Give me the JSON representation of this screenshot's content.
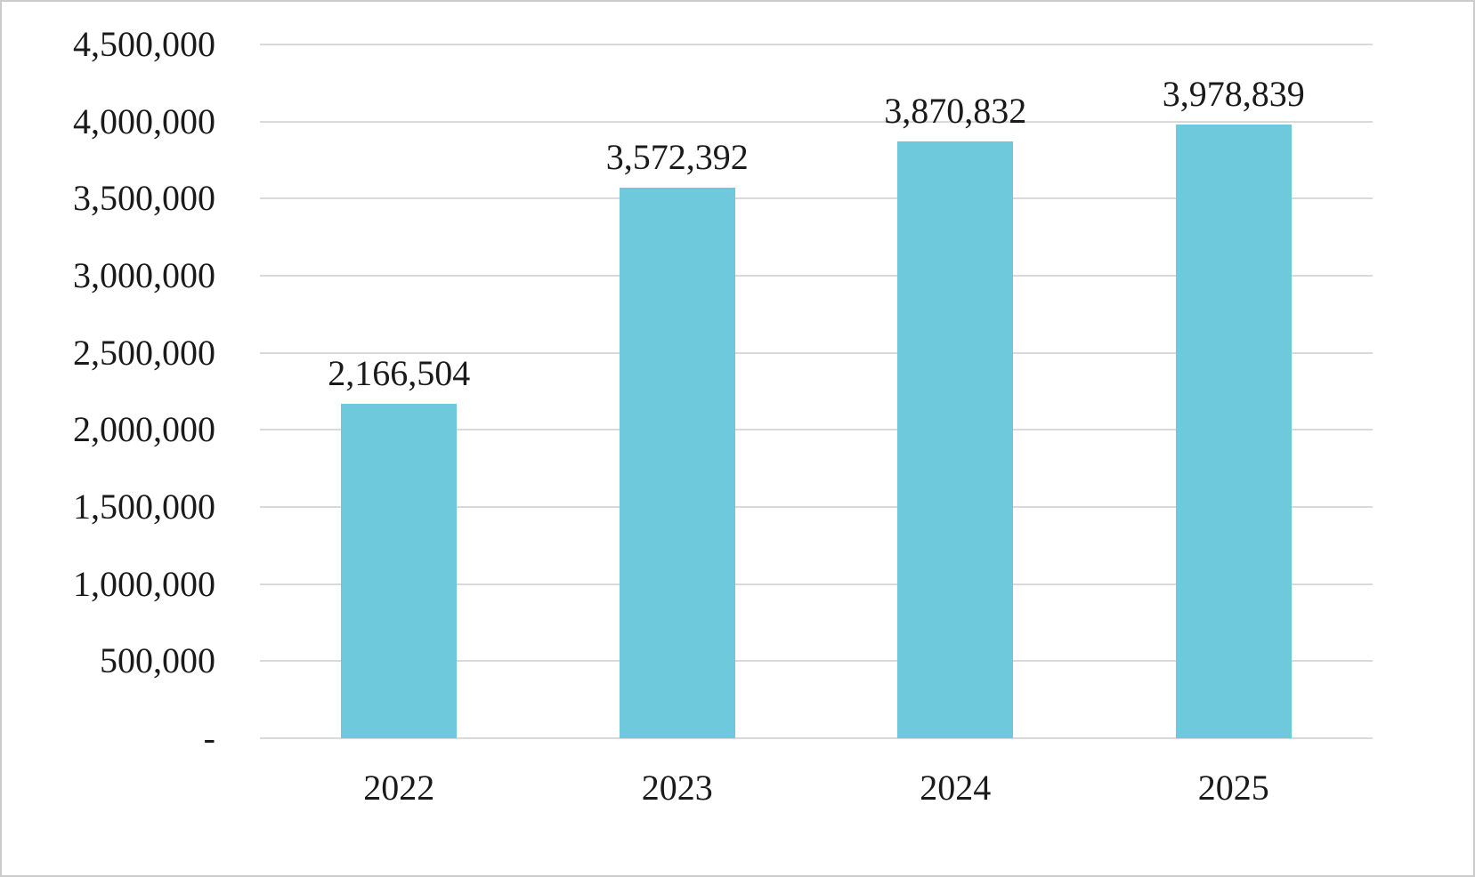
{
  "chart_data": {
    "type": "bar",
    "title": "",
    "categories": [
      "2022",
      "2023",
      "2024",
      "2025"
    ],
    "values": [
      2166504,
      3572392,
      3870832,
      3978839
    ],
    "value_labels": [
      "2,166,504",
      "3,572,392",
      "3,870,832",
      "3,978,839"
    ],
    "y_axis": {
      "min": 0,
      "max": 4500000,
      "tick_interval": 500000,
      "tick_labels": [
        "-",
        "500,000",
        "1,000,000",
        "1,500,000",
        "2,000,000",
        "2,500,000",
        "3,000,000",
        "3,500,000",
        "4,000,000",
        "4,500,000"
      ]
    },
    "x_label": "",
    "y_label": "",
    "grid": true,
    "legend": false,
    "colors": {
      "bar_fill": "#6EC9DD",
      "gridline": "#D9D9D9",
      "text": "#1A1A1A",
      "background": "#FFFFFF",
      "border": "#CCCCCC"
    }
  }
}
